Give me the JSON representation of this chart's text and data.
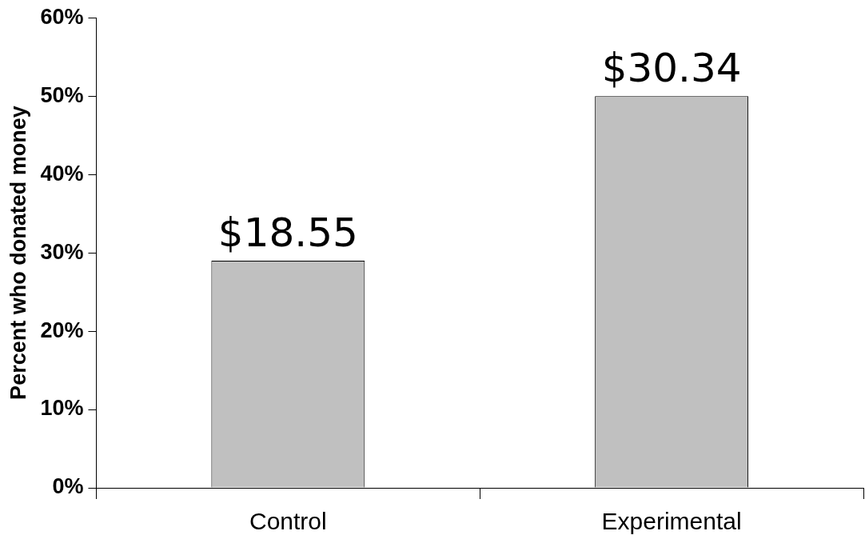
{
  "chart_data": {
    "type": "bar",
    "ylabel": "Percent who donated money",
    "categories": [
      "Control",
      "Experimental"
    ],
    "values": [
      29,
      50
    ],
    "color": "#c0c0c0",
    "ylim": [
      0,
      60
    ],
    "yticks": [
      {
        "value": 0,
        "label": "0%"
      },
      {
        "value": 10,
        "label": "10%"
      },
      {
        "value": 20,
        "label": "20%"
      },
      {
        "value": 30,
        "label": "30%"
      },
      {
        "value": 40,
        "label": "40%"
      },
      {
        "value": 50,
        "label": "50%"
      },
      {
        "value": 60,
        "label": "60%"
      }
    ],
    "annotations": [
      {
        "text": "$18.55",
        "x": "Control",
        "y": 29
      },
      {
        "text": "$30.34",
        "x": "Experimental",
        "y": 50
      }
    ],
    "grid": false,
    "legend": false
  }
}
